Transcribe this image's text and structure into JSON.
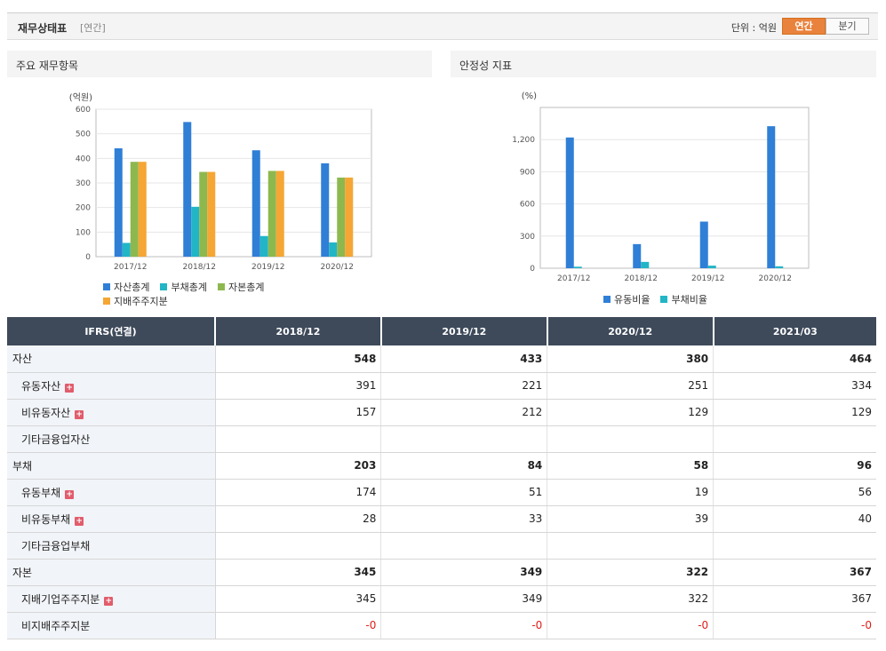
{
  "header": {
    "title": "재무상태표",
    "subtitle": "[연간]",
    "unit": "단위 : 억원",
    "tabs": [
      {
        "label": "연간",
        "active": true
      },
      {
        "label": "분기",
        "active": false
      }
    ]
  },
  "panels": {
    "left_title": "주요 재무항목",
    "right_title": "안정성 지표"
  },
  "chart_data": [
    {
      "type": "bar",
      "ylabel": "(억원)",
      "ylim": [
        0,
        600
      ],
      "yticks": [
        0,
        100,
        200,
        300,
        400,
        500,
        600
      ],
      "categories": [
        "2017/12",
        "2018/12",
        "2019/12",
        "2020/12"
      ],
      "series": [
        {
          "name": "자산총계",
          "color": "#2f7fd6",
          "values": [
            441,
            548,
            433,
            380
          ]
        },
        {
          "name": "부채총계",
          "color": "#22b5c6",
          "values": [
            56,
            203,
            84,
            58
          ]
        },
        {
          "name": "자본총계",
          "color": "#8db84e",
          "values": [
            386,
            345,
            349,
            322
          ]
        },
        {
          "name": "지배주주지분",
          "color": "#f5a634",
          "values": [
            386,
            345,
            349,
            322
          ]
        }
      ],
      "grid": true,
      "legend": "bottom"
    },
    {
      "type": "bar",
      "ylabel": "(%)",
      "ylim": [
        0,
        1500
      ],
      "yticks": [
        0,
        300,
        600,
        900,
        1200
      ],
      "ytick_labels": [
        "0",
        "300",
        "600",
        "900",
        "1,200"
      ],
      "categories": [
        "2017/12",
        "2018/12",
        "2019/12",
        "2020/12"
      ],
      "series": [
        {
          "name": "유동비율",
          "color": "#2f7fd6",
          "values": [
            1220,
            225,
            435,
            1325
          ]
        },
        {
          "name": "부채비율",
          "color": "#22b5c6",
          "values": [
            14,
            59,
            24,
            18
          ]
        }
      ],
      "grid": true,
      "legend": "bottom"
    }
  ],
  "table": {
    "header": [
      "IFRS(연결)",
      "2018/12",
      "2019/12",
      "2020/12",
      "2021/03"
    ],
    "rows": [
      {
        "label": "자산",
        "values": [
          "548",
          "433",
          "380",
          "464"
        ],
        "bold": true,
        "indent": false,
        "plus": false
      },
      {
        "label": "유동자산",
        "values": [
          "391",
          "221",
          "251",
          "334"
        ],
        "bold": false,
        "indent": true,
        "plus": true
      },
      {
        "label": "비유동자산",
        "values": [
          "157",
          "212",
          "129",
          "129"
        ],
        "bold": false,
        "indent": true,
        "plus": true
      },
      {
        "label": "기타금융업자산",
        "values": [
          "",
          "",
          "",
          ""
        ],
        "bold": false,
        "indent": true,
        "plus": false
      },
      {
        "label": "부채",
        "values": [
          "203",
          "84",
          "58",
          "96"
        ],
        "bold": true,
        "indent": false,
        "plus": false
      },
      {
        "label": "유동부채",
        "values": [
          "174",
          "51",
          "19",
          "56"
        ],
        "bold": false,
        "indent": true,
        "plus": true
      },
      {
        "label": "비유동부채",
        "values": [
          "28",
          "33",
          "39",
          "40"
        ],
        "bold": false,
        "indent": true,
        "plus": true
      },
      {
        "label": "기타금융업부채",
        "values": [
          "",
          "",
          "",
          ""
        ],
        "bold": false,
        "indent": true,
        "plus": false
      },
      {
        "label": "자본",
        "values": [
          "345",
          "349",
          "322",
          "367"
        ],
        "bold": true,
        "indent": false,
        "plus": false
      },
      {
        "label": "지배기업주주지분",
        "values": [
          "345",
          "349",
          "322",
          "367"
        ],
        "bold": false,
        "indent": true,
        "plus": true
      },
      {
        "label": "비지배주주지분",
        "values": [
          "-0",
          "-0",
          "-0",
          "-0"
        ],
        "bold": false,
        "indent": true,
        "plus": false
      }
    ],
    "plus_glyph": "+"
  }
}
